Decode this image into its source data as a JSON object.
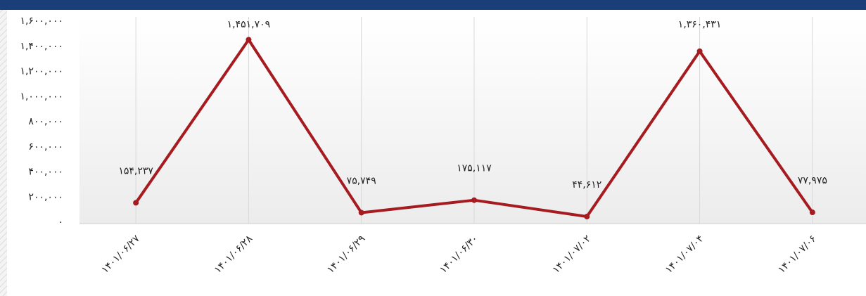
{
  "chart_data": {
    "type": "line",
    "categories": [
      "۱۴۰۱/۰۶/۲۷",
      "۱۴۰۱/۰۶/۲۸",
      "۱۴۰۱/۰۶/۲۹",
      "۱۴۰۱/۰۶/۳۰",
      "۱۴۰۱/۰۷/۰۲",
      "۱۴۰۱/۰۷/۰۴",
      "۱۴۰۱/۰۷/۰۶"
    ],
    "series": [
      {
        "color": "#a51b1f",
        "values": [
          154237,
          1451709,
          75749,
          175117,
          44612,
          1360431,
          77975
        ],
        "value_labels": [
          "۱۵۴,۲۳۷",
          "۱,۴۵۱,۷۰۹",
          "۷۵,۷۴۹",
          "۱۷۵,۱۱۷",
          "۴۴,۶۱۲",
          "۱,۳۶۰,۴۳۱",
          "۷۷,۹۷۵"
        ]
      }
    ],
    "ylim": [
      0,
      1600000
    ],
    "yticks": [
      {
        "value": 0,
        "label": "۰"
      },
      {
        "value": 200000,
        "label": "۲۰۰,۰۰۰"
      },
      {
        "value": 400000,
        "label": "۴۰۰,۰۰۰"
      },
      {
        "value": 600000,
        "label": "۶۰۰,۰۰۰"
      },
      {
        "value": 800000,
        "label": "۸۰۰,۰۰۰"
      },
      {
        "value": 1000000,
        "label": "۱,۰۰۰,۰۰۰"
      },
      {
        "value": 1200000,
        "label": "۱,۲۰۰,۰۰۰"
      },
      {
        "value": 1400000,
        "label": "۱,۴۰۰,۰۰۰"
      },
      {
        "value": 1600000,
        "label": "۱,۶۰۰,۰۰۰"
      }
    ],
    "grid": true
  }
}
